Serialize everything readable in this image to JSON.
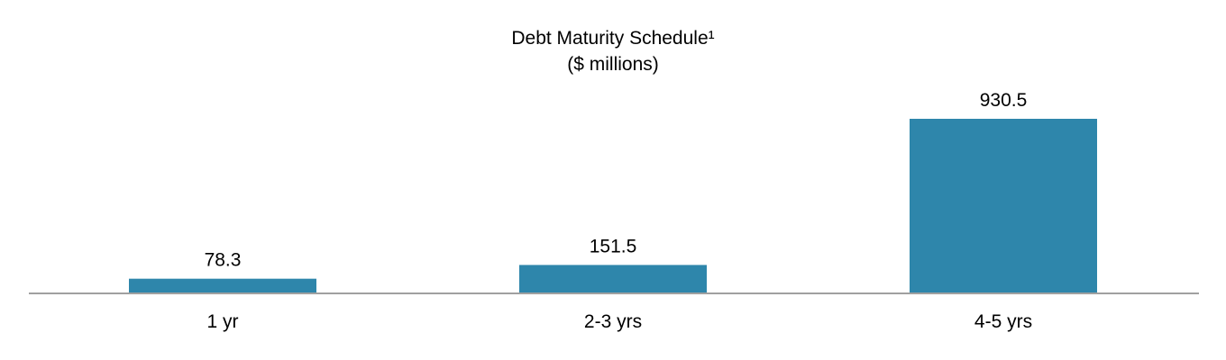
{
  "chart_data": {
    "type": "bar",
    "title": "Debt Maturity Schedule¹",
    "subtitle": "($ millions)",
    "categories": [
      "1 yr",
      "2-3 yrs",
      "4-5 yrs"
    ],
    "values": [
      78.3,
      151.5,
      930.5
    ],
    "value_labels": [
      "78.3",
      "151.5",
      "930.5"
    ],
    "xlabel": "",
    "ylabel": "",
    "ylim": [
      0,
      1000
    ],
    "grid": false,
    "legend": "none",
    "colors": {
      "bar": "#2e86ab",
      "axis": "#a0a0a0"
    }
  }
}
